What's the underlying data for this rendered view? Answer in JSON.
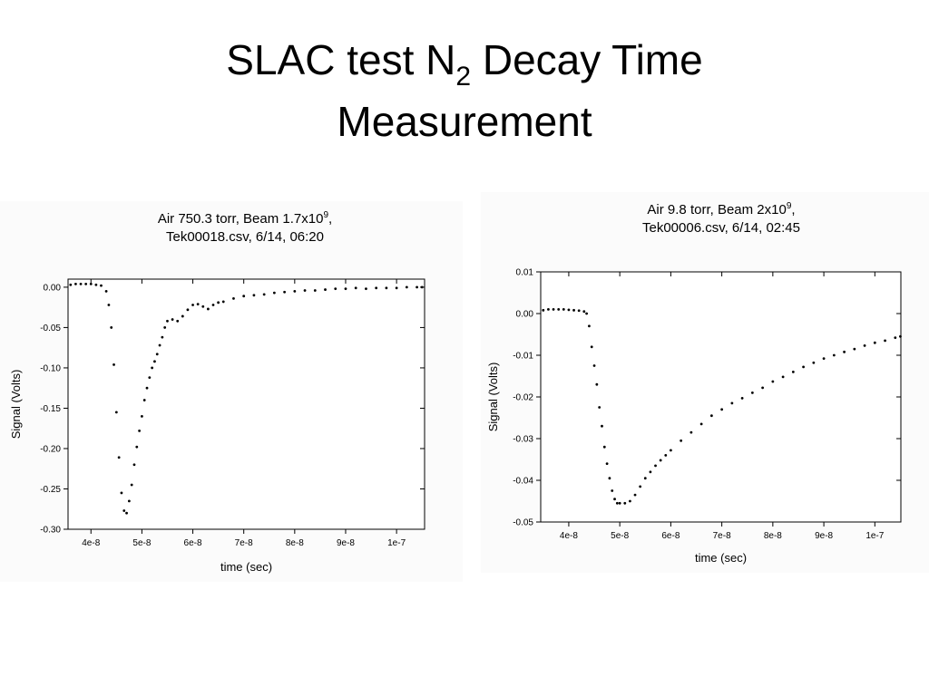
{
  "slide": {
    "title": [
      "SLAC test N",
      "2",
      " Decay Time"
    ],
    "title_line2": "Measurement"
  },
  "chart_data": [
    {
      "type": "scatter",
      "title": [
        "Air 750.3 torr, Beam 1.7x10",
        "9",
        ","
      ],
      "subtitle": "Tek00018.csv, 6/14, 06:20",
      "x_label": "time (sec)",
      "y_label": "Signal (Volts)",
      "color": "#000000",
      "xlim": [
        3.55e-08,
        1.055e-07
      ],
      "ylim": [
        -0.3,
        0.01
      ],
      "xticks": [
        4e-08,
        5e-08,
        6e-08,
        7e-08,
        8e-08,
        9e-08,
        1e-07
      ],
      "yticks": [
        {
          "value": 0,
          "label": "0.00"
        },
        -0.05,
        {
          "value": -0.1,
          "label": "-0.10"
        },
        -0.15,
        {
          "value": -0.2,
          "label": "-0.20"
        },
        -0.25,
        {
          "value": -0.3,
          "label": "-0.30"
        }
      ],
      "x": [
        3.6e-08,
        3.7e-08,
        3.8e-08,
        3.9e-08,
        4e-08,
        4.1e-08,
        4.2e-08,
        4.3e-08,
        4.35e-08,
        4.4e-08,
        4.45e-08,
        4.5e-08,
        4.55e-08,
        4.6e-08,
        4.65e-08,
        4.7e-08,
        4.75e-08,
        4.8e-08,
        4.85e-08,
        4.9e-08,
        4.95e-08,
        5e-08,
        5.05e-08,
        5.1e-08,
        5.15e-08,
        5.2e-08,
        5.25e-08,
        5.3e-08,
        5.35e-08,
        5.4e-08,
        5.45e-08,
        5.5e-08,
        5.6e-08,
        5.7e-08,
        5.8e-08,
        5.9e-08,
        6e-08,
        6.1e-08,
        6.2e-08,
        6.3e-08,
        6.4e-08,
        6.5e-08,
        6.6e-08,
        6.8e-08,
        7e-08,
        7.2e-08,
        7.4e-08,
        7.6e-08,
        7.8e-08,
        8e-08,
        8.2e-08,
        8.4e-08,
        8.6e-08,
        8.8e-08,
        9e-08,
        9.2e-08,
        9.4e-08,
        9.6e-08,
        9.8e-08,
        1e-07,
        1.02e-07,
        1.04e-07,
        1.05e-07
      ],
      "values": [
        0.003,
        0.004,
        0.004,
        0.004,
        0.004,
        0.003,
        0.002,
        -0.005,
        -0.022,
        -0.05,
        -0.096,
        -0.155,
        -0.211,
        -0.255,
        -0.277,
        -0.28,
        -0.265,
        -0.245,
        -0.22,
        -0.198,
        -0.178,
        -0.16,
        -0.14,
        -0.125,
        -0.112,
        -0.1,
        -0.092,
        -0.083,
        -0.072,
        -0.062,
        -0.05,
        -0.042,
        -0.04,
        -0.042,
        -0.036,
        -0.028,
        -0.022,
        -0.021,
        -0.024,
        -0.027,
        -0.022,
        -0.019,
        -0.018,
        -0.014,
        -0.011,
        -0.01,
        -0.009,
        -0.007,
        -0.006,
        -0.005,
        -0.004,
        -0.004,
        -0.003,
        -0.002,
        -0.002,
        -0.001,
        -0.002,
        -0.001,
        -0.001,
        -0.001,
        0,
        0,
        0
      ]
    },
    {
      "type": "scatter",
      "title": [
        "Air 9.8 torr, Beam 2x10",
        "9",
        ","
      ],
      "subtitle": "Tek00006.csv, 6/14, 02:45",
      "x_label": "time (sec)",
      "y_label": "Signal (Volts)",
      "color": "#000000",
      "xlim": [
        3.45e-08,
        1.051e-07
      ],
      "ylim": [
        -0.05,
        0.01
      ],
      "xticks": [
        4e-08,
        5e-08,
        6e-08,
        7e-08,
        8e-08,
        9e-08,
        1e-07
      ],
      "yticks": [
        0.01,
        {
          "value": 0,
          "label": "0.00"
        },
        -0.01,
        -0.02,
        -0.03,
        -0.04,
        -0.05
      ],
      "x": [
        3.5e-08,
        3.6e-08,
        3.7e-08,
        3.8e-08,
        3.9e-08,
        4e-08,
        4.1e-08,
        4.2e-08,
        4.3e-08,
        4.35e-08,
        4.4e-08,
        4.45e-08,
        4.5e-08,
        4.55e-08,
        4.6e-08,
        4.65e-08,
        4.7e-08,
        4.75e-08,
        4.8e-08,
        4.85e-08,
        4.9e-08,
        4.95e-08,
        5e-08,
        5.1e-08,
        5.2e-08,
        5.3e-08,
        5.4e-08,
        5.5e-08,
        5.6e-08,
        5.7e-08,
        5.8e-08,
        5.9e-08,
        6e-08,
        6.2e-08,
        6.4e-08,
        6.6e-08,
        6.8e-08,
        7e-08,
        7.2e-08,
        7.4e-08,
        7.6e-08,
        7.8e-08,
        8e-08,
        8.2e-08,
        8.4e-08,
        8.6e-08,
        8.8e-08,
        9e-08,
        9.2e-08,
        9.4e-08,
        9.6e-08,
        9.8e-08,
        1e-07,
        1.02e-07,
        1.04e-07,
        1.05e-07
      ],
      "values": [
        0.0008,
        0.001,
        0.001,
        0.001,
        0.001,
        0.0009,
        0.0008,
        0.0007,
        0.0005,
        0,
        -0.003,
        -0.008,
        -0.0125,
        -0.017,
        -0.0225,
        -0.027,
        -0.032,
        -0.036,
        -0.0395,
        -0.0425,
        -0.0445,
        -0.0455,
        -0.0455,
        -0.0455,
        -0.045,
        -0.0435,
        -0.0415,
        -0.0395,
        -0.038,
        -0.0365,
        -0.0352,
        -0.034,
        -0.0328,
        -0.0305,
        -0.0285,
        -0.0265,
        -0.0245,
        -0.023,
        -0.0215,
        -0.0203,
        -0.019,
        -0.0178,
        -0.0163,
        -0.0152,
        -0.014,
        -0.0128,
        -0.0118,
        -0.0108,
        -0.01,
        -0.0092,
        -0.0085,
        -0.0077,
        -0.007,
        -0.0065,
        -0.0058,
        -0.0055
      ]
    }
  ]
}
